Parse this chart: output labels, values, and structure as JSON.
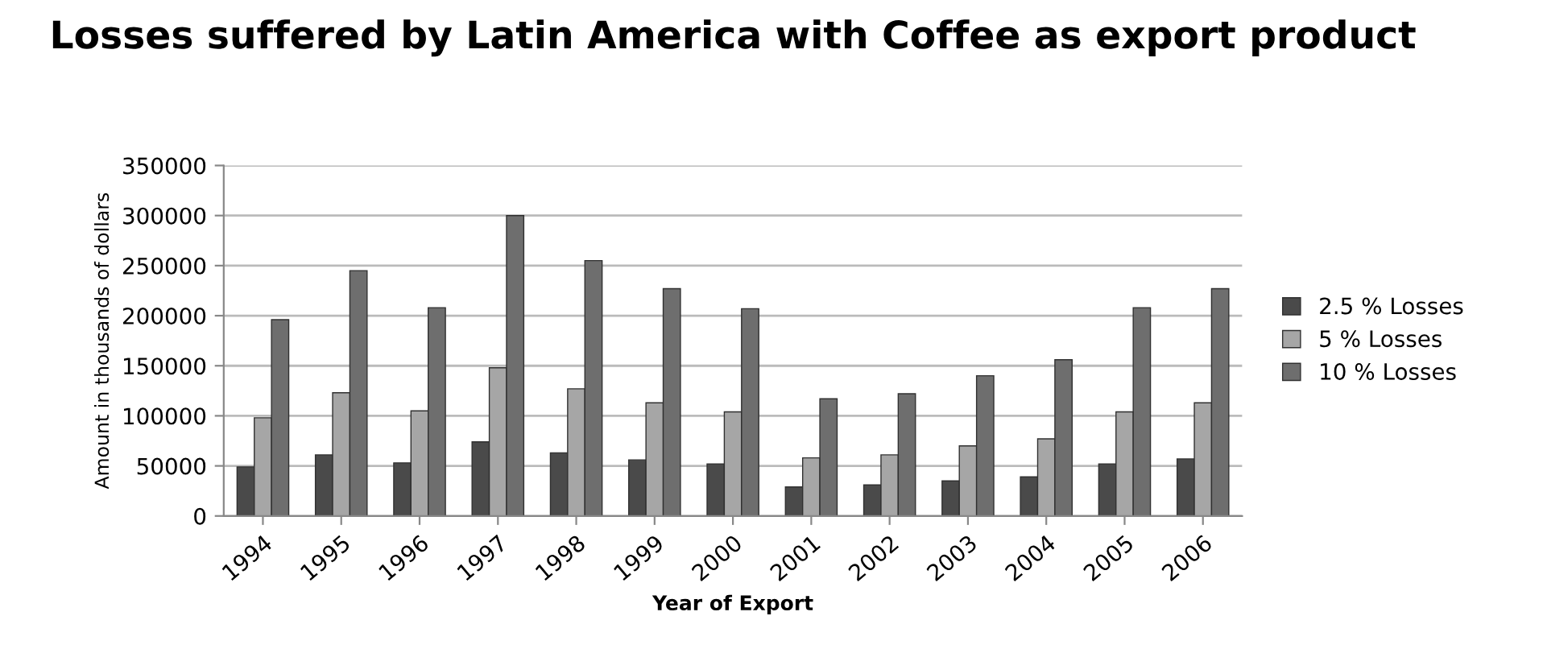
{
  "chart_data": {
    "type": "bar",
    "title": "Losses suffered by Latin America with Coffee as export product",
    "xlabel": "Year of Export",
    "ylabel": "Amount in thousands of dollars",
    "categories": [
      "1994",
      "1995",
      "1996",
      "1997",
      "1998",
      "1999",
      "2000",
      "2001",
      "2002",
      "2003",
      "2004",
      "2005",
      "2006"
    ],
    "series": [
      {
        "name": "2.5 % Losses",
        "color": "#4a4a4a",
        "values": [
          49000,
          61000,
          53000,
          74000,
          63000,
          56000,
          52000,
          29000,
          31000,
          35000,
          39000,
          52000,
          57000
        ]
      },
      {
        "name": "5 % Losses",
        "color": "#a6a6a6",
        "values": [
          98000,
          123000,
          105000,
          148000,
          127000,
          113000,
          104000,
          58000,
          61000,
          70000,
          77000,
          104000,
          113000
        ]
      },
      {
        "name": "10 % Losses",
        "color": "#6e6e6e",
        "values": [
          196000,
          245000,
          208000,
          300000,
          255000,
          227000,
          207000,
          117000,
          122000,
          140000,
          156000,
          208000,
          227000
        ]
      }
    ],
    "ylim": [
      0,
      350000
    ],
    "yticks": [
      0,
      50000,
      100000,
      150000,
      200000,
      250000,
      300000,
      350000
    ],
    "grid": "y",
    "legend": "right"
  }
}
